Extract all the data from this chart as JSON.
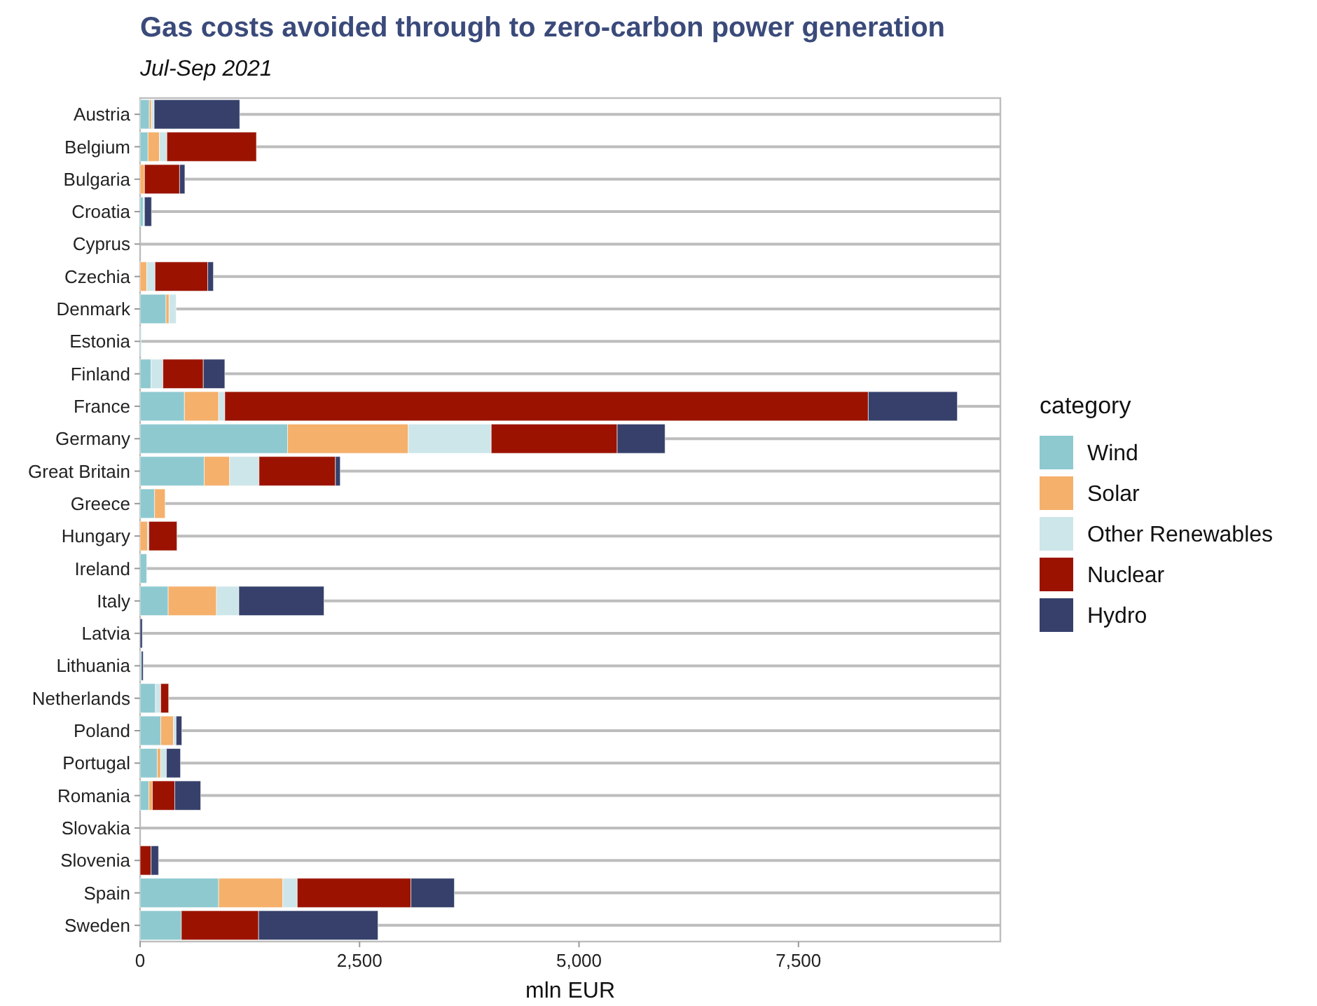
{
  "chart_data": {
    "type": "bar",
    "orientation": "horizontal",
    "stacked": true,
    "title": "Gas costs avoided through to zero-carbon power generation",
    "subtitle": "Jul-Sep 2021",
    "xlabel": "mln EUR",
    "legend_title": "category",
    "legend": "right",
    "grid": "y",
    "categories": [
      "Austria",
      "Belgium",
      "Bulgaria",
      "Croatia",
      "Cyprus",
      "Czechia",
      "Denmark",
      "Estonia",
      "Finland",
      "France",
      "Germany",
      "Great Britain",
      "Greece",
      "Hungary",
      "Ireland",
      "Italy",
      "Latvia",
      "Lithuania",
      "Netherlands",
      "Poland",
      "Portugal",
      "Romania",
      "Slovakia",
      "Slovenia",
      "Spain",
      "Sweden"
    ],
    "xlim": [
      0,
      9800
    ],
    "xticks": [
      {
        "value": 0,
        "label": "0"
      },
      {
        "value": 2500,
        "label": "2,500"
      },
      {
        "value": 5000,
        "label": "5,000"
      },
      {
        "value": 7500,
        "label": "7,500"
      }
    ],
    "series": [
      {
        "name": "Wind",
        "color": "#8ec9d0",
        "values": [
          105,
          90,
          0,
          35,
          0,
          0,
          295,
          10,
          125,
          505,
          1680,
          730,
          165,
          0,
          75,
          320,
          0,
          15,
          175,
          235,
          195,
          100,
          0,
          0,
          895,
          470
        ]
      },
      {
        "name": "Solar",
        "color": "#f5b06b",
        "values": [
          25,
          130,
          50,
          0,
          0,
          75,
          35,
          0,
          0,
          390,
          1375,
          290,
          120,
          85,
          0,
          550,
          0,
          0,
          0,
          145,
          40,
          40,
          0,
          0,
          730,
          0
        ]
      },
      {
        "name": "Other Renewables",
        "color": "#cde6ea",
        "values": [
          30,
          85,
          0,
          15,
          0,
          95,
          80,
          0,
          135,
          70,
          945,
          335,
          0,
          15,
          0,
          255,
          0,
          0,
          60,
          30,
          65,
          0,
          0,
          0,
          165,
          0
        ]
      },
      {
        "name": "Nuclear",
        "color": "#9b1300",
        "values": [
          0,
          1020,
          400,
          0,
          0,
          600,
          0,
          0,
          460,
          7330,
          1435,
          870,
          0,
          320,
          0,
          0,
          0,
          0,
          90,
          0,
          0,
          255,
          0,
          125,
          1295,
          880
        ]
      },
      {
        "name": "Hydro",
        "color": "#36406b",
        "values": [
          975,
          0,
          60,
          80,
          0,
          65,
          0,
          0,
          245,
          1015,
          545,
          55,
          0,
          0,
          0,
          970,
          25,
          20,
          0,
          65,
          160,
          295,
          0,
          85,
          495,
          1360
        ]
      }
    ]
  }
}
